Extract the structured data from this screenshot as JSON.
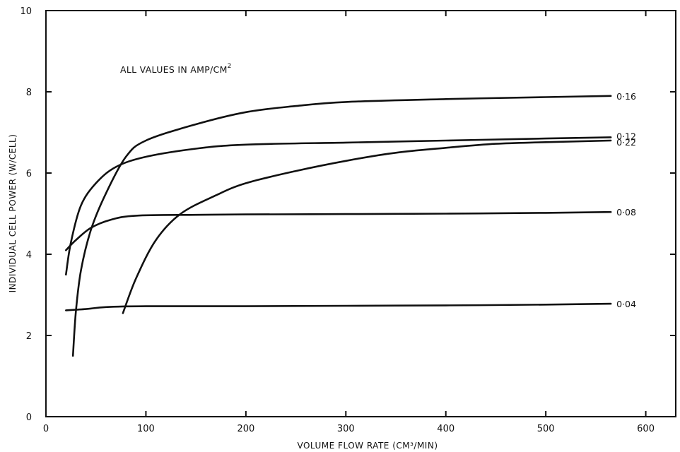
{
  "chart_data": {
    "type": "line",
    "title": "",
    "xlabel": "VOLUME FLOW RATE (CM³/MIN)",
    "ylabel": "INDIVIDUAL CELL POWER (W/CELL)",
    "xlim": [
      0,
      630
    ],
    "ylim": [
      0,
      10
    ],
    "x_ticks": [
      0,
      100,
      200,
      300,
      400,
      500,
      600
    ],
    "y_ticks": [
      0,
      2,
      4,
      6,
      8,
      10
    ],
    "grid": false,
    "annotation": {
      "main": "ALL VALUES IN AMP/CM",
      "sup": "2"
    },
    "series": [
      {
        "name": "0·16",
        "points": [
          [
            27,
            1.5
          ],
          [
            30,
            2.6
          ],
          [
            35,
            3.6
          ],
          [
            45,
            4.6
          ],
          [
            60,
            5.5
          ],
          [
            80,
            6.4
          ],
          [
            100,
            6.8
          ],
          [
            150,
            7.2
          ],
          [
            200,
            7.5
          ],
          [
            250,
            7.65
          ],
          [
            300,
            7.75
          ],
          [
            400,
            7.82
          ],
          [
            500,
            7.87
          ],
          [
            565,
            7.9
          ]
        ]
      },
      {
        "name": "0·12",
        "points": [
          [
            20,
            3.5
          ],
          [
            25,
            4.3
          ],
          [
            35,
            5.2
          ],
          [
            50,
            5.75
          ],
          [
            70,
            6.15
          ],
          [
            100,
            6.4
          ],
          [
            150,
            6.6
          ],
          [
            200,
            6.7
          ],
          [
            300,
            6.75
          ],
          [
            400,
            6.8
          ],
          [
            500,
            6.85
          ],
          [
            565,
            6.88
          ]
        ]
      },
      {
        "name": "0·22",
        "points": [
          [
            77,
            2.55
          ],
          [
            90,
            3.4
          ],
          [
            110,
            4.35
          ],
          [
            135,
            5.0
          ],
          [
            170,
            5.45
          ],
          [
            200,
            5.75
          ],
          [
            250,
            6.05
          ],
          [
            300,
            6.3
          ],
          [
            350,
            6.5
          ],
          [
            400,
            6.62
          ],
          [
            450,
            6.72
          ],
          [
            500,
            6.76
          ],
          [
            565,
            6.8
          ]
        ]
      },
      {
        "name": "0·08",
        "points": [
          [
            20,
            4.1
          ],
          [
            30,
            4.35
          ],
          [
            45,
            4.65
          ],
          [
            65,
            4.85
          ],
          [
            90,
            4.95
          ],
          [
            150,
            4.97
          ],
          [
            200,
            4.98
          ],
          [
            300,
            4.99
          ],
          [
            400,
            5.0
          ],
          [
            500,
            5.02
          ],
          [
            565,
            5.04
          ]
        ]
      },
      {
        "name": "0·04",
        "points": [
          [
            20,
            2.62
          ],
          [
            40,
            2.65
          ],
          [
            60,
            2.7
          ],
          [
            100,
            2.72
          ],
          [
            200,
            2.72
          ],
          [
            300,
            2.73
          ],
          [
            400,
            2.74
          ],
          [
            500,
            2.76
          ],
          [
            565,
            2.78
          ]
        ]
      }
    ]
  }
}
